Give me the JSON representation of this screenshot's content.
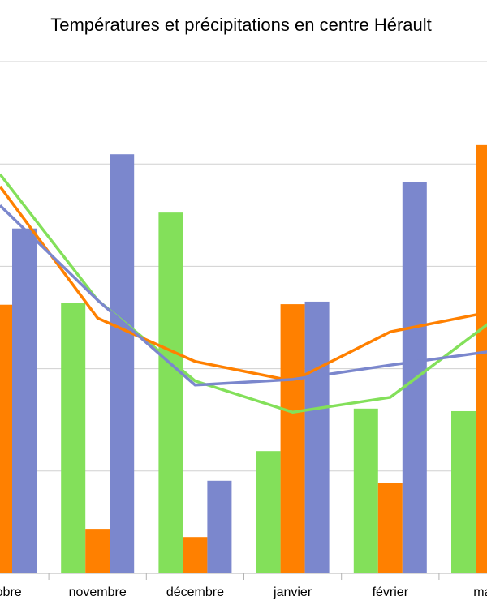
{
  "chart_data": {
    "type": "combo",
    "title": "Températures et précipitations en centre Hérault",
    "categories": [
      "octobre",
      "novembre",
      "décembre",
      "janvier",
      "février",
      "mars"
    ],
    "ylim": [
      0,
      100
    ],
    "yticks": [
      0,
      20,
      40,
      60,
      80,
      100
    ],
    "grid": true,
    "series": [
      {
        "type": "bar",
        "color": "#83e05a",
        "values": [
          null,
          52.8,
          70.5,
          23.9,
          32.2,
          31.7
        ]
      },
      {
        "type": "bar",
        "color": "#ff8000",
        "values": [
          52.5,
          8.7,
          7.1,
          52.6,
          17.6,
          83.7
        ]
      },
      {
        "type": "bar",
        "color": "#7b87cd",
        "values": [
          67.4,
          81.9,
          18.1,
          53.1,
          76.5,
          null
        ]
      },
      {
        "type": "line",
        "color": "#83e05a",
        "values": [
          78.0,
          53.4,
          37.6,
          31.5,
          34.4,
          48.7
        ]
      },
      {
        "type": "line",
        "color": "#ff8000",
        "values": [
          75.6,
          49.9,
          41.4,
          37.6,
          47.2,
          51.0
        ]
      },
      {
        "type": "line",
        "color": "#7b87cd",
        "values": [
          71.9,
          53.4,
          36.8,
          37.9,
          40.7,
          43.3
        ]
      }
    ]
  }
}
